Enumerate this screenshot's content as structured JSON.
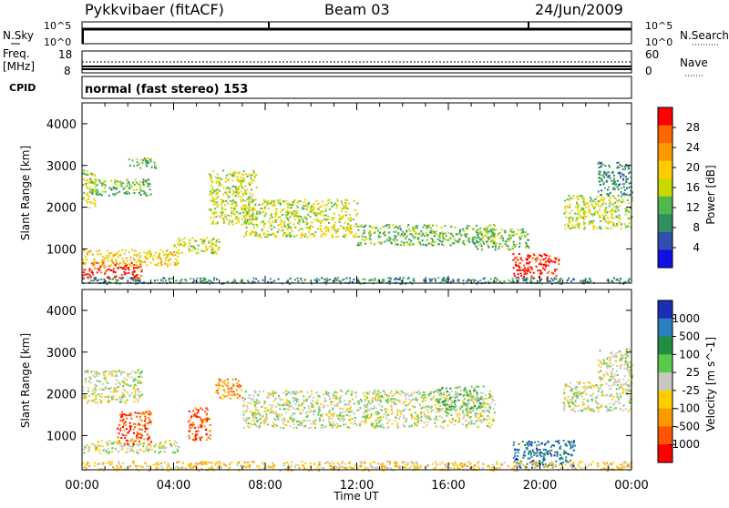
{
  "header": {
    "title": "Pykkvibaer (fitACF)",
    "beam": "Beam 03",
    "date": "24/Jun/2009"
  },
  "nsky_panel": {
    "left_label": "N.Sky",
    "left_ticks": [
      "10^5",
      "10^0"
    ],
    "right_ticks": [
      "10^5",
      "10^0"
    ],
    "right_label": "N.Search"
  },
  "freq_panel": {
    "left_label_1": "Freq.",
    "left_label_2": "[MHz]",
    "left_ticks": [
      "18",
      "8"
    ],
    "right_ticks": [
      "60",
      "0"
    ],
    "right_label": "Nave"
  },
  "cpid": {
    "label": "CPID",
    "text": "normal (fast stereo) 153"
  },
  "chart_data": [
    {
      "type": "heatmap",
      "name": "power",
      "ylabel": "Slant Range [km]",
      "xlabel": "Time UT",
      "xlim_hours": [
        0,
        24
      ],
      "ylim": [
        180,
        4500
      ],
      "x_ticks": [
        "00:00",
        "04:00",
        "08:00",
        "12:00",
        "16:00",
        "20:00",
        "00:00"
      ],
      "y_ticks": [
        1000,
        2000,
        3000,
        4000
      ],
      "colorbar": {
        "label": "Power [dB]",
        "ticks": [
          "28",
          "24",
          "20",
          "16",
          "12",
          "8",
          "4"
        ],
        "colors": [
          "#ff0000",
          "#ff6600",
          "#ff9900",
          "#ffcc00",
          "#c8d800",
          "#4fb84f",
          "#2f8f5f",
          "#3050b0",
          "#1010e0"
        ]
      },
      "bands": [
        {
          "t0": 0.0,
          "t1": 0.6,
          "r0": 2000,
          "r1": 2900,
          "level": 4
        },
        {
          "t0": 0.3,
          "t1": 3.0,
          "r0": 2300,
          "r1": 2700,
          "level": 3
        },
        {
          "t0": 2.0,
          "t1": 3.2,
          "r0": 2950,
          "r1": 3200,
          "level": 3
        },
        {
          "t0": 0.0,
          "t1": 2.6,
          "r0": 300,
          "r1": 700,
          "level": 8
        },
        {
          "t0": 0.0,
          "t1": 4.2,
          "r0": 600,
          "r1": 1000,
          "level": 5
        },
        {
          "t0": 4.0,
          "t1": 6.0,
          "r0": 900,
          "r1": 1300,
          "level": 4
        },
        {
          "t0": 5.5,
          "t1": 7.6,
          "r0": 1600,
          "r1": 2900,
          "level": 4
        },
        {
          "t0": 7.0,
          "t1": 12.0,
          "r0": 1300,
          "r1": 2200,
          "level": 4
        },
        {
          "t0": 12.0,
          "t1": 18.0,
          "r0": 1100,
          "r1": 1600,
          "level": 3
        },
        {
          "t0": 17.0,
          "t1": 19.5,
          "r0": 1000,
          "r1": 1500,
          "level": 3
        },
        {
          "t0": 18.8,
          "t1": 20.8,
          "r0": 300,
          "r1": 900,
          "level": 8
        },
        {
          "t0": 21.0,
          "t1": 24.0,
          "r0": 1500,
          "r1": 2300,
          "level": 4
        },
        {
          "t0": 22.5,
          "t1": 24.0,
          "r0": 2300,
          "r1": 3100,
          "level": 2
        },
        {
          "t0": 0.0,
          "t1": 24.0,
          "r0": 180,
          "r1": 330,
          "level": 2
        }
      ]
    },
    {
      "type": "heatmap",
      "name": "velocity",
      "ylabel": "Slant Range [km]",
      "xlabel": "Time UT",
      "xlim_hours": [
        0,
        24
      ],
      "ylim": [
        180,
        4500
      ],
      "x_ticks": [
        "00:00",
        "04:00",
        "08:00",
        "12:00",
        "16:00",
        "20:00",
        "00:00"
      ],
      "y_ticks": [
        1000,
        2000,
        3000,
        4000
      ],
      "colorbar": {
        "label": "Velocity [m s^-1]",
        "ticks": [
          "1000",
          "500",
          "100",
          "25",
          "-25",
          "-100",
          "-500",
          "-1000"
        ],
        "colors": [
          "#1a2fb5",
          "#2a7fbf",
          "#1f8f3f",
          "#5cc84a",
          "#c8c8c0",
          "#ffcc00",
          "#ff9900",
          "#ff5500",
          "#ff0000"
        ]
      },
      "bands": [
        {
          "t0": 0.0,
          "t1": 2.6,
          "r0": 1800,
          "r1": 2600,
          "level": 4
        },
        {
          "t0": 0.0,
          "t1": 4.2,
          "r0": 600,
          "r1": 900,
          "level": 4
        },
        {
          "t0": 1.5,
          "t1": 3.0,
          "r0": 800,
          "r1": 1600,
          "level": 7
        },
        {
          "t0": 4.6,
          "t1": 5.6,
          "r0": 900,
          "r1": 1700,
          "level": 7
        },
        {
          "t0": 5.8,
          "t1": 7.0,
          "r0": 1900,
          "r1": 2400,
          "level": 6
        },
        {
          "t0": 7.0,
          "t1": 18.0,
          "r0": 1200,
          "r1": 2100,
          "level": 4
        },
        {
          "t0": 15.5,
          "t1": 17.5,
          "r0": 1600,
          "r1": 2200,
          "level": 3
        },
        {
          "t0": 18.8,
          "t1": 21.5,
          "r0": 250,
          "r1": 900,
          "level": 1
        },
        {
          "t0": 21.0,
          "t1": 24.0,
          "r0": 1600,
          "r1": 2300,
          "level": 4
        },
        {
          "t0": 22.5,
          "t1": 24.0,
          "r0": 2300,
          "r1": 3100,
          "level": 4
        },
        {
          "t0": 0.0,
          "t1": 24.0,
          "r0": 180,
          "r1": 400,
          "level": 5
        }
      ]
    }
  ]
}
